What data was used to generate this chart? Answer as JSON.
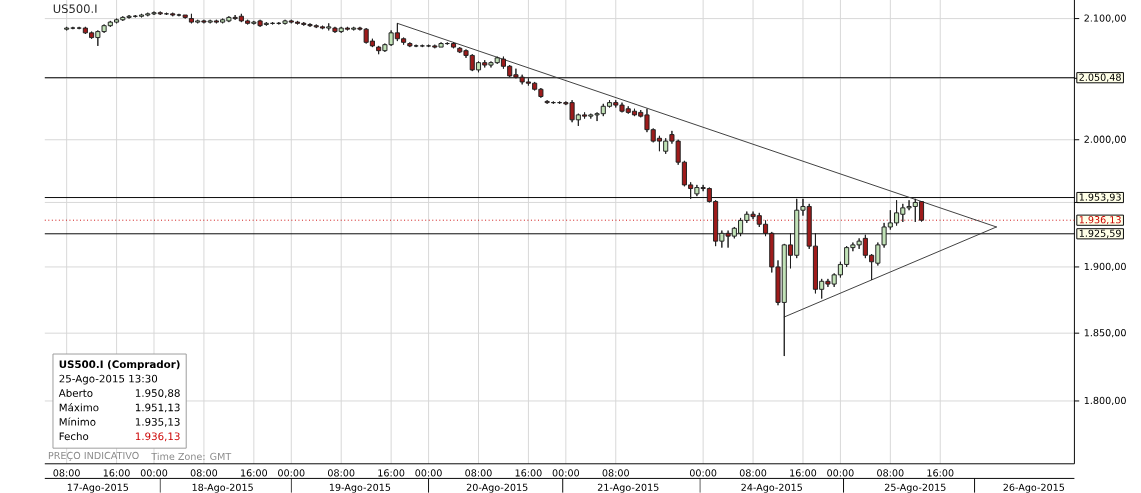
{
  "chart_data": {
    "type": "candlestick",
    "title": "US500.I",
    "categories": [
      null,
      null,
      null,
      "08:00",
      null,
      null,
      null,
      null,
      "17-Ago-2015",
      null,
      null,
      "16:00",
      null,
      null,
      null,
      null,
      null,
      "00:00",
      null,
      null,
      null,
      null,
      null,
      null,
      null,
      "08:00",
      null,
      null,
      "18-Ago-2015",
      null,
      null,
      null,
      null,
      "16:00",
      null,
      null,
      null,
      null,
      null,
      "00:00",
      null,
      null,
      null,
      null,
      null,
      null,
      null,
      "08:00",
      null,
      null,
      "19-Ago-2015",
      null,
      null,
      null,
      null,
      "16:00",
      null,
      null,
      null,
      null,
      null,
      "00:00",
      null,
      null,
      null,
      null,
      null,
      null,
      null,
      "08:00",
      null,
      null,
      "20-Ago-2015",
      null,
      null,
      null,
      null,
      "16:00",
      null,
      null,
      null,
      null,
      null,
      "00:00",
      null,
      null,
      null,
      null,
      null,
      null,
      null,
      "08:00",
      null,
      "21-Ago-2015",
      null,
      null,
      null,
      null,
      null,
      null,
      null,
      null,
      null,
      null,
      null,
      "00:00",
      null,
      null,
      null,
      null,
      null,
      null,
      null,
      "08:00",
      null,
      null,
      "24-Ago-2015",
      null,
      null,
      null,
      null,
      "16:00",
      null,
      null,
      null,
      null,
      null,
      "00:00",
      null,
      null,
      null,
      null,
      null,
      null,
      null,
      "08:00",
      null,
      null,
      null,
      "25-Ago-2015",
      null,
      null,
      null,
      "16:00",
      null,
      null,
      null,
      null,
      null,
      null,
      null,
      null,
      null,
      null,
      null,
      null,
      null,
      null,
      "26-Ago-2015",
      null,
      null,
      null,
      null,
      null,
      null
    ],
    "ohlc": [
      null,
      null,
      null,
      [
        2091,
        2093,
        2090,
        2092
      ],
      [
        2092,
        2093,
        2091,
        2092
      ],
      [
        2092,
        2093,
        2091,
        2092
      ],
      [
        2092,
        2093,
        2087,
        2088
      ],
      [
        2088,
        2089,
        2083,
        2084
      ],
      [
        2084,
        2090,
        2077,
        2089
      ],
      [
        2089,
        2095,
        2088,
        2094
      ],
      [
        2094,
        2098,
        2093,
        2097
      ],
      [
        2097,
        2100,
        2096,
        2099
      ],
      [
        2099,
        2102,
        2098,
        2101
      ],
      [
        2101,
        2103,
        2100,
        2102
      ],
      [
        2102,
        2103,
        2101,
        2102
      ],
      [
        2102,
        2104,
        2101,
        2103
      ],
      [
        2103,
        2105,
        2102,
        2104
      ],
      [
        2104,
        2106,
        2103,
        2105
      ],
      [
        2105,
        2106,
        2103,
        2104
      ],
      [
        2104,
        2105,
        2103,
        2104
      ],
      [
        2104,
        2105,
        2102,
        2103
      ],
      [
        2103,
        2104,
        2102,
        2103
      ],
      [
        2103,
        2103,
        2100,
        2101
      ],
      [
        2100,
        2104,
        2096,
        2097
      ],
      [
        2097,
        2099,
        2096,
        2098
      ],
      [
        2098,
        2099,
        2096,
        2097
      ],
      [
        2097,
        2099,
        2096,
        2098
      ],
      [
        2098,
        2099,
        2096,
        2097
      ],
      [
        2097,
        2100,
        2096,
        2099
      ],
      [
        2098,
        2102,
        2097,
        2101
      ],
      [
        2101,
        2103,
        2099,
        2100
      ],
      [
        2102,
        2104,
        2097,
        2098
      ],
      [
        2098,
        2099,
        2095,
        2096
      ],
      [
        2096,
        2098,
        2095,
        2097
      ],
      [
        2098,
        2099,
        2093,
        2094
      ],
      [
        2095,
        2097,
        2094,
        2096
      ],
      [
        2096,
        2097,
        2095,
        2096
      ],
      [
        2096,
        2097,
        2095,
        2096
      ],
      [
        2096,
        2099,
        2095,
        2098
      ],
      [
        2098,
        2099,
        2096,
        2097
      ],
      [
        2097,
        2098,
        2095,
        2096
      ],
      [
        2096,
        2097,
        2094,
        2095
      ],
      [
        2095,
        2096,
        2093,
        2094
      ],
      [
        2094,
        2095,
        2092,
        2093
      ],
      [
        2093,
        2094,
        2091,
        2092
      ],
      [
        2092,
        2096,
        2090,
        2093
      ],
      [
        2092,
        2093,
        2088,
        2089
      ],
      [
        2089,
        2093,
        2088,
        2092
      ],
      [
        2092,
        2093,
        2090,
        2091
      ],
      [
        2091,
        2093,
        2090,
        2092
      ],
      [
        2092,
        2093,
        2090,
        2091
      ],
      [
        2091,
        2092,
        2079,
        2080
      ],
      [
        2081,
        2083,
        2076,
        2077
      ],
      [
        2076,
        2077,
        2070,
        2073
      ],
      [
        2073,
        2079,
        2072,
        2078
      ],
      [
        2078,
        2090,
        2077,
        2088
      ],
      [
        2088,
        2096,
        2081,
        2083
      ],
      [
        2083,
        2084,
        2078,
        2080
      ],
      [
        2079,
        2080,
        2076,
        2077
      ],
      [
        2077,
        2078,
        2076,
        2077
      ],
      [
        2077,
        2078,
        2076,
        2077
      ],
      [
        2077,
        2078,
        2076,
        2077
      ],
      [
        2077,
        2078,
        2075,
        2076
      ],
      [
        2076,
        2080,
        2076,
        2079
      ],
      [
        2079,
        2080,
        2078,
        2079
      ],
      [
        2079,
        2080,
        2075,
        2076
      ],
      [
        2075,
        2076,
        2071,
        2072
      ],
      [
        2073,
        2074,
        2067,
        2069
      ],
      [
        2069,
        2070,
        2056,
        2057
      ],
      [
        2057,
        2064,
        2055,
        2063
      ],
      [
        2063,
        2065,
        2059,
        2061
      ],
      [
        2061,
        2064,
        2059,
        2063
      ],
      [
        2063,
        2068,
        2062,
        2067
      ],
      [
        2066,
        2068,
        2058,
        2060
      ],
      [
        2060,
        2061,
        2051,
        2052
      ],
      [
        2053,
        2058,
        2050,
        2051
      ],
      [
        2051,
        2053,
        2045,
        2047
      ],
      [
        2047,
        2050,
        2044,
        2046
      ],
      [
        2046,
        2047,
        2040,
        2041
      ],
      [
        2041,
        2042,
        2034,
        2035
      ],
      [
        2031,
        2032,
        2029,
        2030
      ],
      [
        2030,
        2031,
        2029,
        2030
      ],
      [
        2030,
        2031,
        2029,
        2030
      ],
      [
        2030,
        2031,
        2028,
        2029
      ],
      [
        2030,
        2032,
        2014,
        2016
      ],
      [
        2016,
        2021,
        2011,
        2020
      ],
      [
        2020,
        2022,
        2017,
        2019
      ],
      [
        2019,
        2021,
        2017,
        2020
      ],
      [
        2020,
        2022,
        2015,
        2021
      ],
      [
        2021,
        2029,
        2019,
        2027
      ],
      [
        2027,
        2032,
        2026,
        2030
      ],
      [
        2030,
        2032,
        2026,
        2028
      ],
      [
        2028,
        2030,
        2022,
        2023
      ],
      [
        2025,
        2027,
        2021,
        2022
      ],
      [
        2023,
        2025,
        2019,
        2020
      ],
      [
        2022,
        2024,
        2018,
        2019
      ],
      [
        2020,
        2025,
        2006,
        2008
      ],
      [
        2008,
        2009,
        1998,
        1999
      ],
      [
        2001,
        2003,
        1991,
        1999
      ],
      [
        1991,
        2001,
        1989,
        1999
      ],
      [
        2004,
        2007,
        1997,
        1999
      ],
      [
        1999,
        2000,
        1980,
        1982
      ],
      [
        1982,
        1983,
        1963,
        1964
      ],
      [
        1964,
        1966,
        1953,
        1961
      ],
      [
        1957,
        1964,
        1955,
        1962
      ],
      [
        1962,
        1964,
        1959,
        1961
      ],
      [
        1961,
        1962,
        1950,
        1951
      ],
      [
        1951,
        1952,
        1916,
        1920
      ],
      [
        1920,
        1928,
        1915,
        1926
      ],
      [
        1926,
        1928,
        1915,
        1924
      ],
      [
        1924,
        1931,
        1922,
        1930
      ],
      [
        1926,
        1938,
        1924,
        1936
      ],
      [
        1936,
        1943,
        1934,
        1941
      ],
      [
        1941,
        1943,
        1937,
        1939
      ],
      [
        1940,
        1942,
        1931,
        1933
      ],
      [
        1933,
        1936,
        1924,
        1926
      ],
      [
        1926,
        1927,
        1896,
        1900
      ],
      [
        1900,
        1905,
        1871,
        1873
      ],
      [
        1873,
        1918,
        1833,
        1917
      ],
      [
        1917,
        1926,
        1899,
        1909
      ],
      [
        1909,
        1953,
        1907,
        1944
      ],
      [
        1944,
        1953,
        1940,
        1947
      ],
      [
        1947,
        1949,
        1914,
        1916
      ],
      [
        1916,
        1926,
        1880,
        1883
      ],
      [
        1883,
        1891,
        1876,
        1889
      ],
      [
        1889,
        1891,
        1885,
        1887
      ],
      [
        1887,
        1895,
        1885,
        1894
      ],
      [
        1894,
        1904,
        1892,
        1902
      ],
      [
        1902,
        1916,
        1900,
        1915
      ],
      [
        1915,
        1919,
        1912,
        1917
      ],
      [
        1917,
        1922,
        1914,
        1920
      ],
      [
        1922,
        1925,
        1907,
        1909
      ],
      [
        1909,
        1910,
        1890,
        1904
      ],
      [
        1903,
        1919,
        1901,
        1917
      ],
      [
        1917,
        1934,
        1915,
        1931
      ],
      [
        1931,
        1944,
        1929,
        1934
      ],
      [
        1934,
        1952,
        1932,
        1942
      ],
      [
        1941,
        1949,
        1935,
        1946
      ],
      [
        1946,
        1952,
        1944,
        1947
      ],
      [
        1947,
        1953,
        1935,
        1950
      ],
      [
        1950.88,
        1951.13,
        1935.13,
        1936.13
      ],
      null,
      null,
      null,
      null,
      null,
      null,
      null,
      null,
      null,
      null,
      null,
      null,
      null,
      null,
      null,
      null,
      null,
      null,
      null,
      null,
      null,
      null,
      null,
      null
    ],
    "color": "#1e1e1e",
    "colors": [
      null,
      null,
      null,
      "#c2e3b8",
      "#1e1e1e",
      "#1e1e1e",
      "#9e1b1b",
      "#9e1b1b",
      "#c2e3b8",
      "#c2e3b8",
      "#c2e3b8",
      "#c2e3b8",
      "#c2e3b8",
      "#c2e3b8",
      "#1e1e1e",
      "#c2e3b8",
      "#c2e3b8",
      "#c2e3b8",
      "#9e1b1b",
      "#1e1e1e",
      "#9e1b1b",
      "#1e1e1e",
      "#9e1b1b",
      "#9e1b1b",
      "#c2e3b8",
      "#9e1b1b",
      "#c2e3b8",
      "#9e1b1b",
      "#c2e3b8",
      "#c2e3b8",
      "#9e1b1b",
      "#9e1b1b",
      "#9e1b1b",
      "#c2e3b8",
      "#9e1b1b",
      "#c2e3b8",
      "#1e1e1e",
      "#1e1e1e",
      "#c2e3b8",
      "#9e1b1b",
      "#9e1b1b",
      "#9e1b1b",
      "#9e1b1b",
      "#9e1b1b",
      "#9e1b1b",
      "#c2e3b8",
      "#9e1b1b",
      "#c2e3b8",
      "#9e1b1b",
      "#c2e3b8",
      "#9e1b1b",
      "#9e1b1b",
      "#9e1b1b",
      "#9e1b1b",
      "#c2e3b8",
      "#c2e3b8",
      "#9e1b1b",
      "#9e1b1b",
      "#9e1b1b",
      "#1e1e1e",
      "#1e1e1e",
      "#1e1e1e",
      "#9e1b1b",
      "#c2e3b8",
      "#1e1e1e",
      "#9e1b1b",
      "#9e1b1b",
      "#9e1b1b",
      "#9e1b1b",
      "#c2e3b8",
      "#9e1b1b",
      "#c2e3b8",
      "#c2e3b8",
      "#9e1b1b",
      "#9e1b1b",
      "#9e1b1b",
      "#9e1b1b",
      "#9e1b1b",
      "#9e1b1b",
      "#9e1b1b",
      "#9e1b1b",
      "#1e1e1e",
      "#1e1e1e",
      "#9e1b1b",
      "#9e1b1b",
      "#c2e3b8",
      "#9e1b1b",
      "#c2e3b8",
      "#c2e3b8",
      "#c2e3b8",
      "#c2e3b8",
      "#9e1b1b",
      "#9e1b1b",
      "#9e1b1b",
      "#9e1b1b",
      "#9e1b1b",
      "#9e1b1b",
      "#9e1b1b",
      "#9e1b1b",
      "#c2e3b8",
      "#9e1b1b",
      "#9e1b1b",
      "#9e1b1b",
      "#9e1b1b",
      "#c2e3b8",
      "#9e1b1b",
      "#9e1b1b",
      "#9e1b1b",
      "#c2e3b8",
      "#9e1b1b",
      "#c2e3b8",
      "#c2e3b8",
      "#c2e3b8",
      "#9e1b1b",
      "#9e1b1b",
      "#9e1b1b",
      "#9e1b1b",
      "#9e1b1b",
      "#c2e3b8",
      "#9e1b1b",
      "#c2e3b8",
      "#c2e3b8",
      "#9e1b1b",
      "#9e1b1b",
      "#c2e3b8",
      "#9e1b1b",
      "#c2e3b8",
      "#c2e3b8",
      "#c2e3b8",
      "#c2e3b8",
      "#c2e3b8",
      "#9e1b1b",
      "#9e1b1b",
      "#c2e3b8",
      "#c2e3b8",
      "#c2e3b8",
      "#c2e3b8",
      "#c2e3b8",
      "#c2e3b8",
      "#c2e3b8",
      "#9e1b1b",
      null,
      null,
      null,
      null,
      null,
      null,
      null,
      null,
      null,
      null,
      null,
      null,
      null,
      null,
      null,
      null,
      null,
      null,
      null,
      null,
      null,
      null,
      null,
      null
    ],
    "series": [
      {
        "type": "line",
        "color": "#3a3a3a",
        "values": [
          null,
          null,
          null,
          null,
          null,
          null,
          null,
          null,
          null,
          null,
          null,
          null,
          null,
          null,
          null,
          null,
          null,
          null,
          null,
          null,
          null,
          null,
          null,
          null,
          null,
          null,
          null,
          null,
          null,
          null,
          null,
          null,
          null,
          null,
          null,
          null,
          null,
          null,
          null,
          null,
          null,
          null,
          null,
          null,
          null,
          null,
          null,
          null,
          null,
          null,
          null,
          null,
          null,
          null,
          null,
          null,
          2096,
          null,
          null,
          null,
          null,
          null,
          null,
          null,
          null,
          null,
          null,
          null,
          null,
          null,
          null,
          null,
          null,
          null,
          null,
          null,
          null,
          null,
          null,
          null,
          null,
          null,
          null,
          null,
          null,
          null,
          null,
          null,
          null,
          null,
          null,
          null,
          null,
          null,
          null,
          null,
          null,
          null,
          null,
          null,
          null,
          null,
          null,
          null,
          null,
          null,
          null,
          null,
          null,
          null,
          null,
          null,
          null,
          null,
          null,
          null,
          null,
          null,
          null,
          null,
          null,
          null,
          null,
          null,
          null,
          null,
          null,
          null,
          null,
          null,
          null,
          null,
          null,
          null,
          null,
          null,
          null,
          null,
          null,
          null,
          null,
          null,
          null,
          null,
          null,
          null,
          null,
          null,
          null,
          null,
          null,
          null,
          1931,
          null,
          null,
          null,
          null,
          null,
          null,
          null,
          null,
          null,
          null,
          null,
          null
        ]
      },
      {
        "type": "line",
        "color": "#3a3a3a",
        "values": [
          null,
          null,
          null,
          null,
          null,
          null,
          null,
          null,
          null,
          null,
          null,
          null,
          null,
          null,
          null,
          null,
          null,
          null,
          null,
          null,
          null,
          null,
          null,
          null,
          null,
          null,
          null,
          null,
          null,
          null,
          null,
          null,
          null,
          null,
          null,
          null,
          null,
          null,
          null,
          null,
          null,
          null,
          null,
          null,
          null,
          null,
          null,
          null,
          null,
          null,
          null,
          null,
          null,
          null,
          null,
          null,
          null,
          null,
          null,
          null,
          null,
          null,
          null,
          null,
          null,
          null,
          null,
          null,
          null,
          null,
          null,
          null,
          null,
          null,
          null,
          null,
          null,
          null,
          null,
          null,
          null,
          null,
          null,
          null,
          null,
          null,
          null,
          null,
          null,
          null,
          null,
          null,
          null,
          null,
          null,
          null,
          null,
          null,
          null,
          null,
          null,
          null,
          null,
          null,
          null,
          null,
          null,
          null,
          null,
          null,
          null,
          null,
          null,
          null,
          null,
          null,
          null,
          null,
          1862,
          null,
          null,
          null,
          null,
          null,
          null,
          null,
          null,
          null,
          null,
          null,
          null,
          null,
          null,
          null,
          null,
          null,
          null,
          null,
          null,
          null,
          null,
          null,
          null,
          null,
          null,
          null,
          null,
          null,
          null,
          null,
          null,
          null,
          1931,
          null,
          null,
          null,
          null,
          null,
          null,
          null,
          null,
          null,
          null,
          null,
          null
        ]
      }
    ],
    "ylim": [
      1755,
      2116
    ],
    "yticks": [
      {
        "value": 1800,
        "label": "1.800,00"
      },
      {
        "value": 1850,
        "label": "1.850,00"
      },
      {
        "value": 1900,
        "label": "1.900,00"
      },
      {
        "value": 1950,
        "label": null
      },
      {
        "value": 2000,
        "label": "2.000,00"
      },
      {
        "value": 2050,
        "label": null
      },
      {
        "value": 2100,
        "label": "2.100,00"
      }
    ],
    "log": true,
    "grid": true,
    "ref_lines": [
      {
        "axis": "y",
        "value": 2050.48,
        "label": "2.050,48",
        "color": "#000000"
      },
      {
        "axis": "y",
        "value": 1953.93,
        "label": "1.953,93",
        "color": "#000000"
      },
      {
        "axis": "y",
        "value": 1936.13,
        "label": "1.936,13",
        "color": "#cc0000",
        "line_style": "dotted"
      },
      {
        "axis": "y",
        "value": 1925.59,
        "label": "1.925,59",
        "color": "#000000"
      }
    ],
    "annotations": [
      "US500.I (Comprador)",
      "25-Ago-2015 13:30",
      "Aberto",
      "1.950,88",
      "Máximo",
      "1.951,13",
      "Mínimo",
      "1.935,13",
      "Fecho",
      "1.936,13",
      "PREÇO INDICATIVO",
      "Time Zone: GMT"
    ]
  }
}
